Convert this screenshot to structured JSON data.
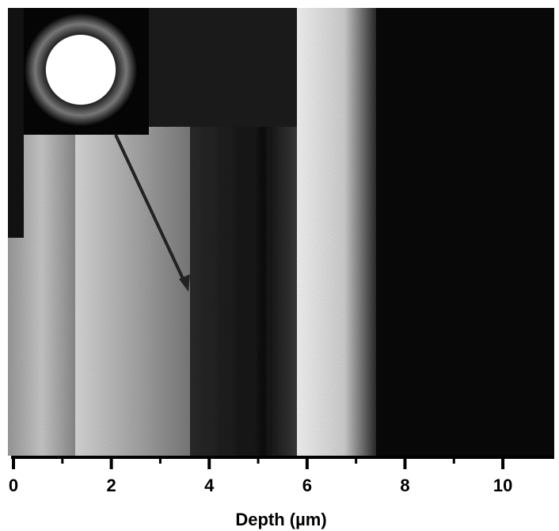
{
  "axis": {
    "label": "Depth (µm)",
    "xlim": [
      0,
      11.05
    ],
    "xticks": [
      0,
      2,
      4,
      6,
      8,
      10
    ],
    "xminor": [
      1,
      3,
      5,
      7,
      9
    ]
  }
}
